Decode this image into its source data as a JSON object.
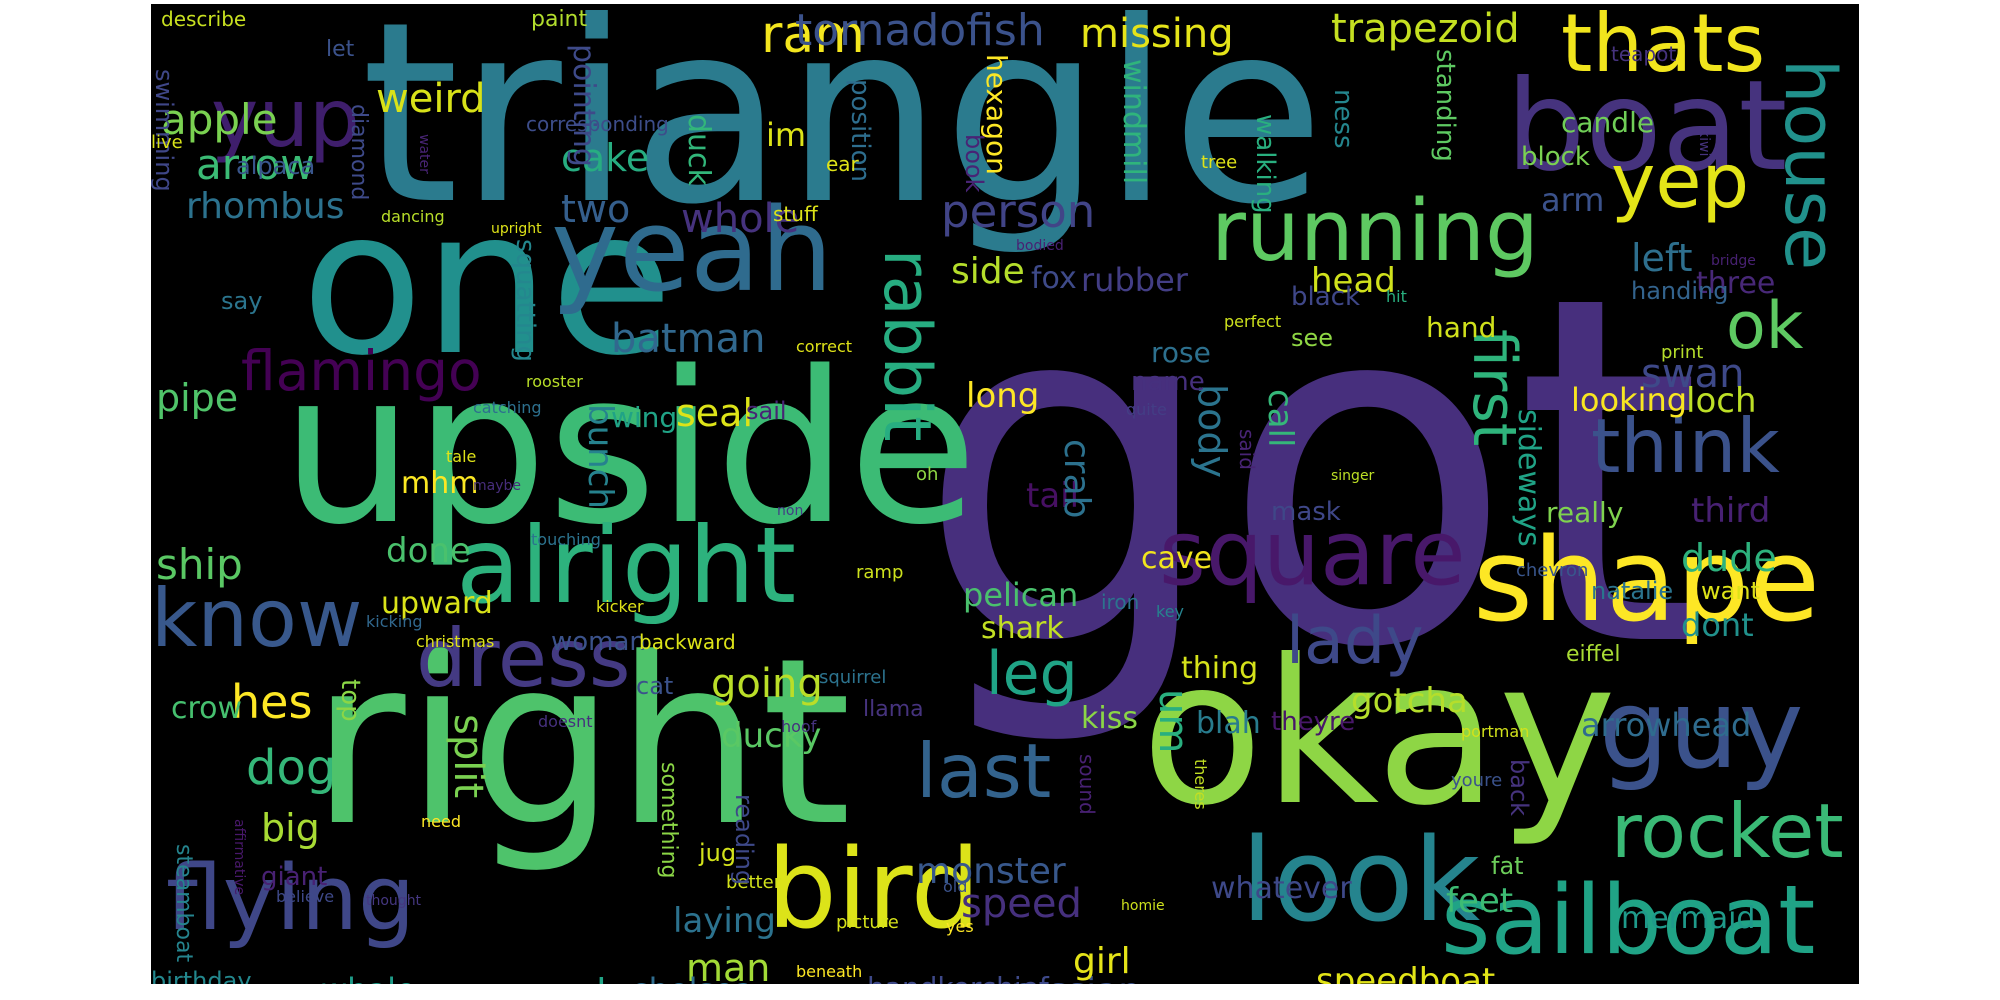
{
  "word_cloud": {
    "words": [
      {
        "text": "got",
        "color": "#472f7d"
      },
      {
        "text": "triangle",
        "color": "#2b7b8e"
      },
      {
        "text": "right",
        "color": "#4ec36b"
      },
      {
        "text": "upside",
        "color": "#3cbb75"
      },
      {
        "text": "one",
        "color": "#21908d"
      },
      {
        "text": "okay",
        "color": "#8ed645"
      },
      {
        "text": "boat",
        "color": "#46337e"
      },
      {
        "text": "yeah",
        "color": "#2f6b8e"
      },
      {
        "text": "alright",
        "color": "#2db27d"
      },
      {
        "text": "shape",
        "color": "#fde725"
      },
      {
        "text": "look",
        "color": "#25848e"
      },
      {
        "text": "bird",
        "color": "#dce319"
      },
      {
        "text": "guy",
        "color": "#3b528b"
      },
      {
        "text": "sailboat",
        "color": "#20a386"
      },
      {
        "text": "square",
        "color": "#48186a"
      },
      {
        "text": "running",
        "color": "#5ec962"
      },
      {
        "text": "dress",
        "color": "#443a83"
      },
      {
        "text": "flying",
        "color": "#3f4788"
      },
      {
        "text": "know",
        "color": "#38588c"
      },
      {
        "text": "rocket",
        "color": "#3aba76"
      },
      {
        "text": "think",
        "color": "#3b528b"
      },
      {
        "text": "thats",
        "color": "#f1e51d"
      },
      {
        "text": "yep",
        "color": "#e3e418"
      },
      {
        "text": "ok",
        "color": "#5ec962"
      },
      {
        "text": "yup",
        "color": "#3f1e6c"
      },
      {
        "text": "house",
        "color": "#21918c"
      },
      {
        "text": "last",
        "color": "#33638d"
      },
      {
        "text": "rabbit",
        "color": "#27ad81"
      },
      {
        "text": "first",
        "color": "#2fb47c"
      },
      {
        "text": "lady",
        "color": "#3e4989"
      },
      {
        "text": "leg",
        "color": "#20a486"
      },
      {
        "text": "flamingo",
        "color": "#440154"
      },
      {
        "text": "apple",
        "color": "#7ad151"
      },
      {
        "text": "arrow",
        "color": "#3bbb75"
      },
      {
        "text": "weird",
        "color": "#d8e219"
      },
      {
        "text": "ram",
        "color": "#f4e61e"
      },
      {
        "text": "tornadofish",
        "color": "#3b528b"
      },
      {
        "text": "missing",
        "color": "#e5e419"
      },
      {
        "text": "trapezoid",
        "color": "#c5e021"
      },
      {
        "text": "person",
        "color": "#414487"
      },
      {
        "text": "whole",
        "color": "#46327e"
      },
      {
        "text": "two",
        "color": "#355f8d"
      },
      {
        "text": "cake",
        "color": "#27ad81"
      },
      {
        "text": "rhombus",
        "color": "#2c728e"
      },
      {
        "text": "batman",
        "color": "#31688e"
      },
      {
        "text": "side",
        "color": "#b5de2b"
      },
      {
        "text": "rubber",
        "color": "#433e85"
      },
      {
        "text": "fox",
        "color": "#3e4a89"
      },
      {
        "text": "head",
        "color": "#d0e11c"
      },
      {
        "text": "left",
        "color": "#2e6f8e"
      },
      {
        "text": "three",
        "color": "#482878"
      },
      {
        "text": "swan",
        "color": "#3e4989"
      },
      {
        "text": "looking",
        "color": "#f8e621"
      },
      {
        "text": "loch",
        "color": "#bddf26"
      },
      {
        "text": "pipe",
        "color": "#50c46a"
      },
      {
        "text": "seal",
        "color": "#dde318"
      },
      {
        "text": "bunch",
        "color": "#26828e"
      },
      {
        "text": "wing",
        "color": "#20a386"
      },
      {
        "text": "long",
        "color": "#fde725"
      },
      {
        "text": "body",
        "color": "#2b748e"
      },
      {
        "text": "call",
        "color": "#35b779"
      },
      {
        "text": "tail",
        "color": "#471063"
      },
      {
        "text": "crab",
        "color": "#2c718e"
      },
      {
        "text": "mhm",
        "color": "#fbe723"
      },
      {
        "text": "ship",
        "color": "#5ac864"
      },
      {
        "text": "done",
        "color": "#4ac16d"
      },
      {
        "text": "upward",
        "color": "#dae319"
      },
      {
        "text": "pelican",
        "color": "#4ac16d"
      },
      {
        "text": "shark",
        "color": "#c2df23"
      },
      {
        "text": "hes",
        "color": "#fde725"
      },
      {
        "text": "going",
        "color": "#bade28"
      },
      {
        "text": "ducky",
        "color": "#5ac864"
      },
      {
        "text": "woman",
        "color": "#3b528b"
      },
      {
        "text": "um",
        "color": "#29af7f"
      },
      {
        "text": "dude",
        "color": "#2db27d"
      },
      {
        "text": "dont",
        "color": "#21918c"
      },
      {
        "text": "gotcha",
        "color": "#b5de2b"
      },
      {
        "text": "arrowhead",
        "color": "#2f6c8e"
      },
      {
        "text": "dog",
        "color": "#35b779"
      },
      {
        "text": "big",
        "color": "#a8db34"
      },
      {
        "text": "split",
        "color": "#7ad151"
      },
      {
        "text": "monster",
        "color": "#38588c"
      },
      {
        "text": "speed",
        "color": "#46307e"
      },
      {
        "text": "laying",
        "color": "#2c728e"
      },
      {
        "text": "man",
        "color": "#a2da37"
      },
      {
        "text": "second",
        "color": "#20a486"
      },
      {
        "text": "chelsea",
        "color": "#2f6c8e"
      },
      {
        "text": "handkerchief",
        "color": "#3e4989"
      },
      {
        "text": "russian",
        "color": "#3b528b"
      },
      {
        "text": "speedboat",
        "color": "#e2e418"
      },
      {
        "text": "girl",
        "color": "#e5e419"
      },
      {
        "text": "feet",
        "color": "#3dbc74"
      },
      {
        "text": "whatever",
        "color": "#3e4989"
      },
      {
        "text": "mermaid",
        "color": "#1f9a8a"
      },
      {
        "text": "whale",
        "color": "#1e9c89"
      },
      {
        "text": "birthday",
        "color": "#23888e"
      },
      {
        "text": "crow",
        "color": "#46c06f"
      },
      {
        "text": "kiss",
        "color": "#8bd646"
      },
      {
        "text": "blah",
        "color": "#287c8e"
      },
      {
        "text": "theyre",
        "color": "#481769"
      },
      {
        "text": "thing",
        "color": "#d5e21a"
      },
      {
        "text": "cave",
        "color": "#f1e51d"
      },
      {
        "text": "mask",
        "color": "#3f4788"
      },
      {
        "text": "sideways",
        "color": "#20a386"
      },
      {
        "text": "really",
        "color": "#7fd34e"
      },
      {
        "text": "third",
        "color": "#482173"
      },
      {
        "text": "rose",
        "color": "#2d708e"
      },
      {
        "text": "name",
        "color": "#46307e"
      },
      {
        "text": "black",
        "color": "#3f4788"
      },
      {
        "text": "hand",
        "color": "#d0e11c"
      },
      {
        "text": "arm",
        "color": "#3b528b"
      },
      {
        "text": "handing",
        "color": "#33638d"
      },
      {
        "text": "candle",
        "color": "#70cf57"
      },
      {
        "text": "block",
        "color": "#7ad151"
      },
      {
        "text": "standing",
        "color": "#5ec962"
      },
      {
        "text": "ness",
        "color": "#24868e"
      },
      {
        "text": "walking",
        "color": "#29af7f"
      },
      {
        "text": "windmill",
        "color": "#2fb47c"
      },
      {
        "text": "hexagon",
        "color": "#fde725"
      },
      {
        "text": "position",
        "color": "#2e6e8e"
      },
      {
        "text": "im",
        "color": "#dde318"
      },
      {
        "text": "duck",
        "color": "#32b67a"
      },
      {
        "text": "pointing",
        "color": "#3e4a89"
      },
      {
        "text": "squatting",
        "color": "#24878e"
      },
      {
        "text": "swimming",
        "color": "#3f4788"
      },
      {
        "text": "diamond",
        "color": "#3e4a89"
      },
      {
        "text": "alpaca",
        "color": "#39568c"
      },
      {
        "text": "let",
        "color": "#3b528b"
      },
      {
        "text": "describe",
        "color": "#c8e020"
      },
      {
        "text": "paint",
        "color": "#b2dd2d"
      },
      {
        "text": "corresponding",
        "color": "#3d4d8a"
      },
      {
        "text": "teapot",
        "color": "#46337e"
      },
      {
        "text": "book",
        "color": "#482475"
      },
      {
        "text": "ear",
        "color": "#dfe318"
      },
      {
        "text": "stuff",
        "color": "#dde318"
      },
      {
        "text": "tree",
        "color": "#dfe318"
      },
      {
        "text": "live",
        "color": "#d8e219"
      },
      {
        "text": "water",
        "color": "#482475"
      },
      {
        "text": "kiwi",
        "color": "#46337e"
      },
      {
        "text": "dancing",
        "color": "#b8de29"
      },
      {
        "text": "upright",
        "color": "#dfe318"
      },
      {
        "text": "bodied",
        "color": "#482173"
      },
      {
        "text": "hit",
        "color": "#29af7f"
      },
      {
        "text": "bridge",
        "color": "#482173"
      },
      {
        "text": "say",
        "color": "#2b758e"
      },
      {
        "text": "correct",
        "color": "#dfe318"
      },
      {
        "text": "perfect",
        "color": "#cde11d"
      },
      {
        "text": "see",
        "color": "#8fd744"
      },
      {
        "text": "print",
        "color": "#b5de2b"
      },
      {
        "text": "rooster",
        "color": "#b8de29"
      },
      {
        "text": "catching",
        "color": "#2d708e"
      },
      {
        "text": "sail",
        "color": "#482475"
      },
      {
        "text": "quite",
        "color": "#433e85"
      },
      {
        "text": "said",
        "color": "#482475"
      },
      {
        "text": "tale",
        "color": "#dfe318"
      },
      {
        "text": "maybe",
        "color": "#472d7b"
      },
      {
        "text": "oh",
        "color": "#8fd744"
      },
      {
        "text": "non",
        "color": "#433e85"
      },
      {
        "text": "singer",
        "color": "#bddf26"
      },
      {
        "text": "touching",
        "color": "#2c738e"
      },
      {
        "text": "ramp",
        "color": "#cde11d"
      },
      {
        "text": "key",
        "color": "#26828e"
      },
      {
        "text": "chevron",
        "color": "#39568c"
      },
      {
        "text": "natalie",
        "color": "#2b748e"
      },
      {
        "text": "want",
        "color": "#dde318"
      },
      {
        "text": "kicking",
        "color": "#31688e"
      },
      {
        "text": "kicker",
        "color": "#dfe318"
      },
      {
        "text": "christmas",
        "color": "#dfe318"
      },
      {
        "text": "backward",
        "color": "#dde318"
      },
      {
        "text": "iron",
        "color": "#2c738e"
      },
      {
        "text": "eiffel",
        "color": "#a8db34"
      },
      {
        "text": "squirrel",
        "color": "#2c738e"
      },
      {
        "text": "cat",
        "color": "#3b528b"
      },
      {
        "text": "doesnt",
        "color": "#46307e"
      },
      {
        "text": "hoof",
        "color": "#46337e"
      },
      {
        "text": "llama",
        "color": "#46337e"
      },
      {
        "text": "portman",
        "color": "#d2e21b"
      },
      {
        "text": "youre",
        "color": "#3b528b"
      },
      {
        "text": "affirmative",
        "color": "#48186a"
      },
      {
        "text": "something",
        "color": "#8bd646"
      },
      {
        "text": "sound",
        "color": "#482173"
      },
      {
        "text": "theres",
        "color": "#c2df23"
      },
      {
        "text": "steamboat",
        "color": "#25848e"
      },
      {
        "text": "need",
        "color": "#fde725"
      },
      {
        "text": "giant",
        "color": "#482173"
      },
      {
        "text": "believe",
        "color": "#3e4989"
      },
      {
        "text": "thought",
        "color": "#453781"
      },
      {
        "text": "jug",
        "color": "#d2e21b"
      },
      {
        "text": "better",
        "color": "#d2e21b"
      },
      {
        "text": "reading",
        "color": "#3e4989"
      },
      {
        "text": "old",
        "color": "#3b528b"
      },
      {
        "text": "homie",
        "color": "#cde11d"
      },
      {
        "text": "yes",
        "color": "#fde725"
      },
      {
        "text": "picture",
        "color": "#d5e21a"
      },
      {
        "text": "beneath",
        "color": "#fde725"
      },
      {
        "text": "back",
        "color": "#46337e"
      },
      {
        "text": "fat",
        "color": "#6ccd5a"
      },
      {
        "text": "top",
        "color": "#8bd646"
      }
    ]
  }
}
